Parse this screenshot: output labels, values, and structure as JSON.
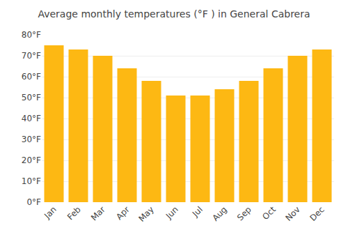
{
  "chart_data": {
    "type": "bar",
    "title": "Average monthly temperatures (°F ) in General Cabrera",
    "categories": [
      "Jan",
      "Feb",
      "Mar",
      "Apr",
      "May",
      "Jun",
      "Jul",
      "Aug",
      "Sep",
      "Oct",
      "Nov",
      "Dec"
    ],
    "values": [
      75,
      73,
      70,
      64,
      58,
      51,
      51,
      54,
      58,
      64,
      70,
      73
    ],
    "color": "#FDB813",
    "ylim": [
      0,
      80
    ],
    "yticks": [
      {
        "value": 0,
        "label": "0°F"
      },
      {
        "value": 10,
        "label": "10°F"
      },
      {
        "value": 20,
        "label": "20°F"
      },
      {
        "value": 30,
        "label": "30°F"
      },
      {
        "value": 40,
        "label": "40°F"
      },
      {
        "value": 50,
        "label": "50°F"
      },
      {
        "value": 60,
        "label": "60°F"
      },
      {
        "value": 70,
        "label": "70°F"
      },
      {
        "value": 80,
        "label": "80°F"
      }
    ],
    "grid": true
  }
}
